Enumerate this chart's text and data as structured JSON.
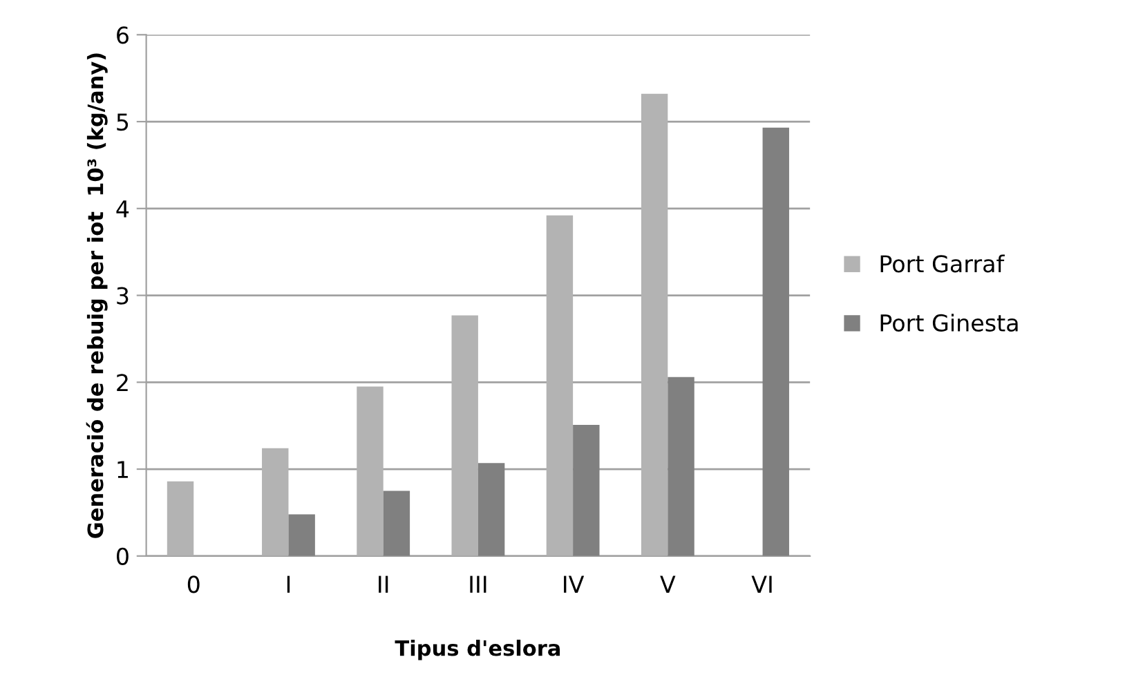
{
  "chart_data": {
    "type": "bar",
    "xlabel": "Tipus d'eslora",
    "ylabel": "Generació de rebuig per iot  10³ (kg/any)",
    "categories": [
      "0",
      "I",
      "II",
      "III",
      "IV",
      "V",
      "VI"
    ],
    "series": [
      {
        "name": "Port Garraf",
        "color": "#b3b3b3",
        "values": [
          0.86,
          1.24,
          1.95,
          2.77,
          3.92,
          5.32,
          null
        ]
      },
      {
        "name": "Port Ginesta",
        "color": "#808080",
        "values": [
          null,
          0.48,
          0.75,
          1.07,
          1.51,
          2.06,
          4.93
        ]
      }
    ],
    "ylim": [
      0,
      6
    ],
    "yticks": [
      0,
      1,
      2,
      3,
      4,
      5,
      6
    ],
    "grid": "y",
    "legend": "right"
  }
}
